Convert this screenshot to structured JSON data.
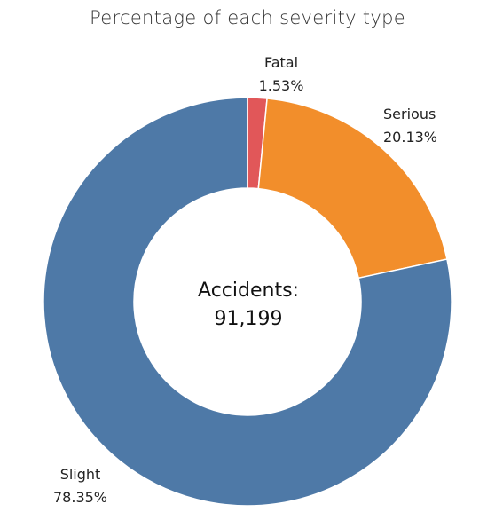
{
  "chart_data": {
    "type": "pie",
    "title": "Percentage of each severity type",
    "center_label": "Accidents:",
    "center_value": "91,199",
    "slices": [
      {
        "label": "Fatal",
        "percent_text": "1.53%",
        "value": 1.53,
        "color": "#e15759"
      },
      {
        "label": "Serious",
        "percent_text": "20.13%",
        "value": 20.13,
        "color": "#f28e2b"
      },
      {
        "label": "Slight",
        "percent_text": "78.35%",
        "value": 78.35,
        "color": "#4e79a7"
      }
    ]
  }
}
